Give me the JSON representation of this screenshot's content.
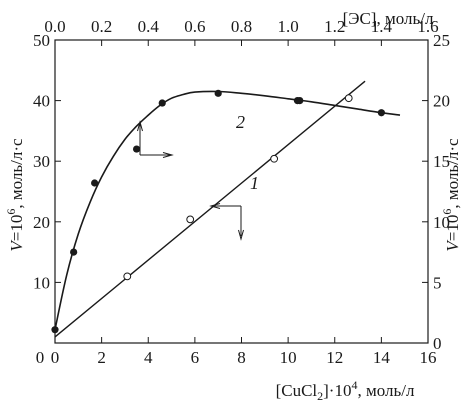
{
  "chart_data": {
    "type": "scatter",
    "title": "",
    "xlabel_bottom": {
      "prefix": "[CuCl",
      "sub": "2",
      "mid": "]·10",
      "sup": "4",
      "suffix": ", моль/л"
    },
    "xlabel_top": "[ЭС], моль/л",
    "ylabel_left": {
      "prefix": "V",
      "mid": "=10",
      "sup": "6",
      "suffix": ", моль/л·с"
    },
    "ylabel_right": {
      "prefix": "V",
      "mid": "=10",
      "sup": "6",
      "suffix": ", моль/л·с"
    },
    "x_bottom": {
      "range": [
        0,
        16
      ],
      "ticks": [
        0,
        2,
        4,
        6,
        8,
        10,
        12,
        14,
        16
      ],
      "tick_labels": [
        "0",
        "2",
        "4",
        "6",
        "8",
        "10",
        "12",
        "14",
        "16"
      ]
    },
    "x_top": {
      "range": [
        0,
        1.6
      ],
      "ticks": [
        0,
        0.2,
        0.4,
        0.6,
        0.8,
        1.0,
        1.2,
        1.4,
        1.6
      ],
      "tick_labels": [
        "0.0",
        "0.2",
        "0.4",
        "0.6",
        "0.8",
        "1.0",
        "1.2",
        "1.4",
        "1.6"
      ]
    },
    "y_left": {
      "range": [
        0,
        50
      ],
      "ticks": [
        10,
        20,
        30,
        40,
        50
      ],
      "tick_labels": [
        "10",
        "20",
        "30",
        "40",
        "50"
      ]
    },
    "y_right": {
      "range": [
        0,
        25
      ],
      "ticks": [
        0,
        5,
        10,
        15,
        20,
        25
      ],
      "tick_labels": [
        "0",
        "5",
        "10",
        "15",
        "20",
        "25"
      ]
    },
    "series": [
      {
        "label": "1",
        "marker": "open-circle",
        "axes": "bottom-left",
        "points": [
          [
            3.1,
            11.0
          ],
          [
            5.8,
            20.4
          ],
          [
            9.4,
            30.4
          ],
          [
            12.6,
            40.4
          ]
        ],
        "fit_line": [
          [
            0.0,
            1.0
          ],
          [
            13.3,
            43.2
          ]
        ]
      },
      {
        "label": "2",
        "marker": "filled-circle",
        "axes": "top-right",
        "points": [
          [
            0.0,
            1.1
          ],
          [
            0.08,
            7.5
          ],
          [
            0.17,
            13.2
          ],
          [
            0.35,
            16.0
          ],
          [
            0.46,
            19.8
          ],
          [
            0.7,
            20.6
          ],
          [
            1.04,
            20.0
          ],
          [
            1.05,
            20.0
          ],
          [
            1.4,
            19.0
          ]
        ],
        "curve": [
          [
            0.0,
            1.1
          ],
          [
            0.05,
            5.6
          ],
          [
            0.1,
            9.0
          ],
          [
            0.15,
            11.6
          ],
          [
            0.2,
            13.7
          ],
          [
            0.25,
            15.4
          ],
          [
            0.3,
            16.8
          ],
          [
            0.35,
            17.9
          ],
          [
            0.4,
            18.8
          ],
          [
            0.45,
            19.6
          ],
          [
            0.5,
            20.2
          ],
          [
            0.55,
            20.5
          ],
          [
            0.6,
            20.7
          ],
          [
            0.7,
            20.75
          ],
          [
            0.8,
            20.6
          ],
          [
            0.9,
            20.4
          ],
          [
            1.0,
            20.15
          ],
          [
            1.1,
            19.9
          ],
          [
            1.2,
            19.6
          ],
          [
            1.3,
            19.3
          ],
          [
            1.4,
            19.0
          ],
          [
            1.48,
            18.8
          ]
        ]
      }
    ]
  }
}
